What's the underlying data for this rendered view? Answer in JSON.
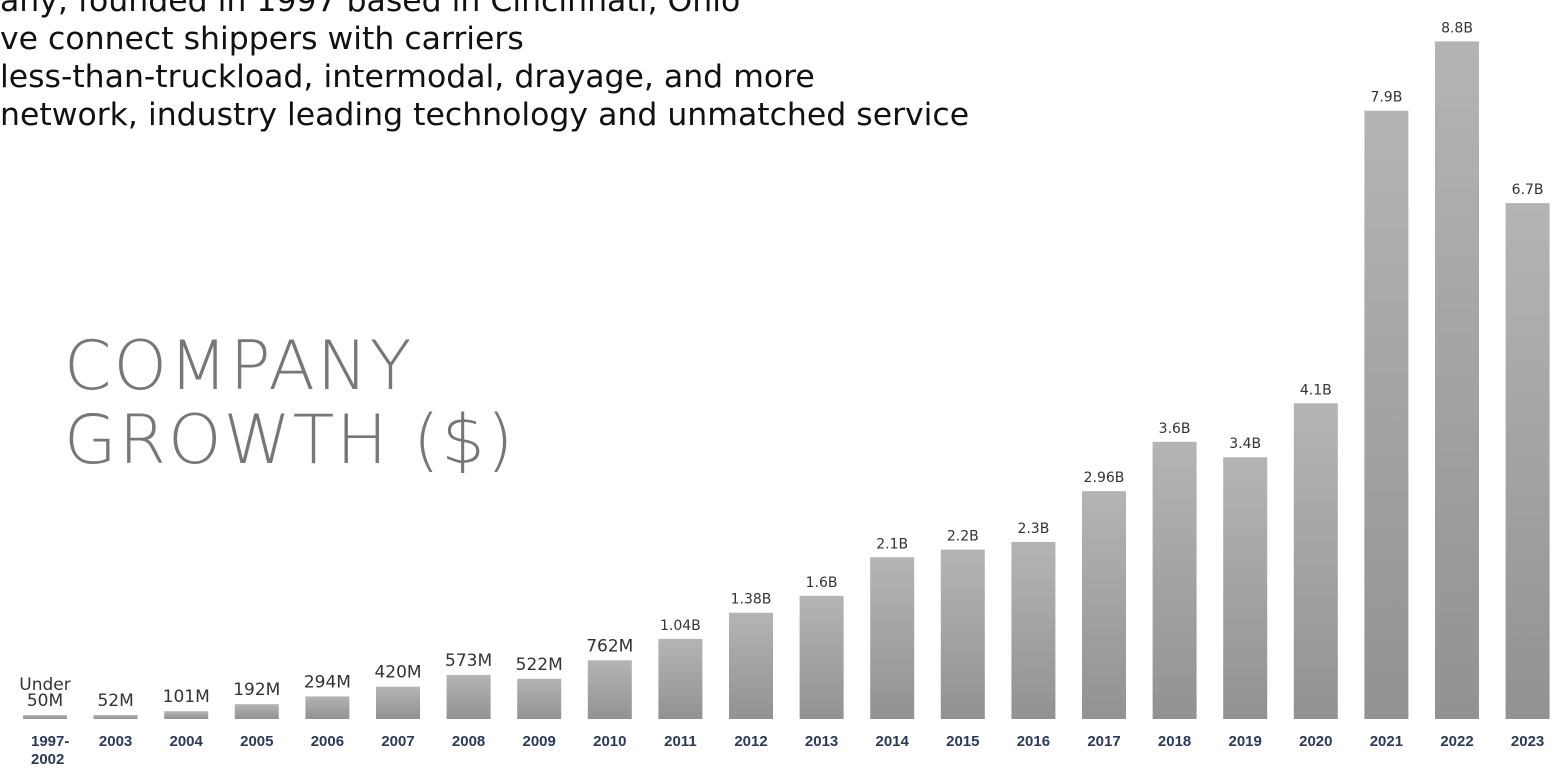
{
  "header": {
    "bullets": [
      "any, founded in 1997 based in Cincinnati, Ohio",
      "ve connect shippers with carriers",
      "less-than-truckload, intermodal, drayage, and more",
      "network, industry leading technology and unmatched service"
    ]
  },
  "title_lines": [
    "COMPANY",
    "GROWTH ($)"
  ],
  "colors": {
    "bar_light": "#b4b4b4",
    "bar_dark": "#929292",
    "year_text": "#2a3a5c",
    "value_text": "#333333"
  },
  "chart_data": {
    "type": "bar",
    "title": "COMPANY GROWTH ($)",
    "categories": [
      "1997-2002",
      "2003",
      "2004",
      "2005",
      "2006",
      "2007",
      "2008",
      "2009",
      "2010",
      "2011",
      "2012",
      "2013",
      "2014",
      "2015",
      "2016",
      "2017",
      "2018",
      "2019",
      "2020",
      "2021",
      "2022",
      "2023"
    ],
    "category_lines": [
      [
        "1997-",
        "2002"
      ],
      [
        "2003"
      ],
      [
        "2004"
      ],
      [
        "2005"
      ],
      [
        "2006"
      ],
      [
        "2007"
      ],
      [
        "2008"
      ],
      [
        "2009"
      ],
      [
        "2010"
      ],
      [
        "2011"
      ],
      [
        "2012"
      ],
      [
        "2013"
      ],
      [
        "2014"
      ],
      [
        "2015"
      ],
      [
        "2016"
      ],
      [
        "2017"
      ],
      [
        "2018"
      ],
      [
        "2019"
      ],
      [
        "2020"
      ],
      [
        "2021"
      ],
      [
        "2022"
      ],
      [
        "2023"
      ]
    ],
    "values": [
      0.05,
      0.052,
      0.101,
      0.192,
      0.294,
      0.42,
      0.573,
      0.522,
      0.762,
      1.04,
      1.38,
      1.6,
      2.1,
      2.2,
      2.3,
      2.96,
      3.6,
      3.4,
      4.1,
      7.9,
      8.8,
      6.7
    ],
    "value_unit": "billions of USD",
    "labels": [
      [
        "Under",
        "50M"
      ],
      [
        "52M"
      ],
      [
        "101M"
      ],
      [
        "192M"
      ],
      [
        "294M"
      ],
      [
        "420M"
      ],
      [
        "573M"
      ],
      [
        "522M"
      ],
      [
        "762M"
      ],
      [
        "1.04B"
      ],
      [
        "1.38B"
      ],
      [
        "1.6B"
      ],
      [
        "2.1B"
      ],
      [
        "2.2B"
      ],
      [
        "2.3B"
      ],
      [
        "2.96B"
      ],
      [
        "3.6B"
      ],
      [
        "3.4B"
      ],
      [
        "4.1B"
      ],
      [
        "7.9B"
      ],
      [
        "8.8B"
      ],
      [
        "6.7B"
      ]
    ],
    "ylim": [
      0,
      9
    ],
    "grid": false,
    "legend": "none",
    "xlabel": "",
    "ylabel": ""
  }
}
